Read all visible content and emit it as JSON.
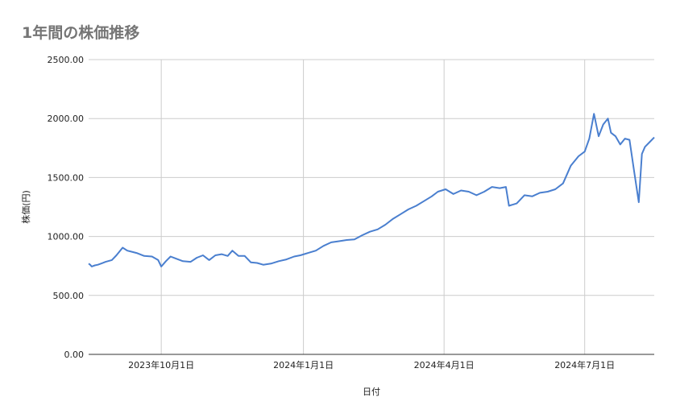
{
  "chart_data": {
    "type": "line",
    "title": "1年間の株価推移",
    "xlabel": "日付",
    "ylabel": "株価(円)",
    "ylim": [
      0,
      2500
    ],
    "xlim": [
      "2023-08-15",
      "2024-08-15"
    ],
    "y_ticks": [
      "0.00",
      "500.00",
      "1000.00",
      "1500.00",
      "2000.00",
      "2500.00"
    ],
    "x_ticks": [
      {
        "date": "2023-10-01",
        "label": "2023年10月1日"
      },
      {
        "date": "2024-01-01",
        "label": "2024年1月1日"
      },
      {
        "date": "2024-04-01",
        "label": "2024年4月1日"
      },
      {
        "date": "2024-07-01",
        "label": "2024年7月1日"
      }
    ],
    "grid": true,
    "legend": "none",
    "colors": {
      "line": "#4a7fcf",
      "grid": "#cccccc",
      "axis": "#333333"
    },
    "series": [
      {
        "x": [
          "2023-08-15",
          "2023-08-16",
          "2023-08-17",
          "2023-08-19",
          "2023-08-21",
          "2023-08-23",
          "2023-08-26",
          "2023-08-30",
          "2023-09-02",
          "2023-09-06",
          "2023-09-09",
          "2023-09-12",
          "2023-09-15",
          "2023-09-17",
          "2023-09-20",
          "2023-09-25",
          "2023-09-29",
          "2023-10-01",
          "2023-10-02",
          "2023-10-04",
          "2023-10-07",
          "2023-10-10",
          "2023-10-15",
          "2023-10-20",
          "2023-10-24",
          "2023-10-28",
          "2023-11-01",
          "2023-11-05",
          "2023-11-09",
          "2023-11-13",
          "2023-11-16",
          "2023-11-20",
          "2023-11-24",
          "2023-11-28",
          "2023-12-02",
          "2023-12-06",
          "2023-12-11",
          "2023-12-16",
          "2023-12-21",
          "2023-12-26",
          "2023-12-30",
          "2024-01-04",
          "2024-01-09",
          "2024-01-14",
          "2024-01-19",
          "2024-01-24",
          "2024-01-29",
          "2024-02-03",
          "2024-02-08",
          "2024-02-13",
          "2024-02-18",
          "2024-02-23",
          "2024-02-28",
          "2024-03-04",
          "2024-03-09",
          "2024-03-14",
          "2024-03-19",
          "2024-03-24",
          "2024-03-28",
          "2024-04-02",
          "2024-04-07",
          "2024-04-12",
          "2024-04-17",
          "2024-04-22",
          "2024-04-27",
          "2024-05-02",
          "2024-05-07",
          "2024-05-11",
          "2024-05-13",
          "2024-05-18",
          "2024-05-23",
          "2024-05-28",
          "2024-06-02",
          "2024-06-07",
          "2024-06-12",
          "2024-06-17",
          "2024-06-22",
          "2024-06-27",
          "2024-07-01",
          "2024-07-04",
          "2024-07-07",
          "2024-07-10",
          "2024-07-13",
          "2024-07-16",
          "2024-07-18",
          "2024-07-21",
          "2024-07-24",
          "2024-07-27",
          "2024-07-30",
          "2024-08-02",
          "2024-08-05",
          "2024-08-07",
          "2024-08-09",
          "2024-08-12",
          "2024-08-15"
        ],
        "values": [
          770,
          760,
          745,
          755,
          760,
          770,
          785,
          800,
          840,
          905,
          880,
          870,
          860,
          850,
          835,
          830,
          800,
          745,
          760,
          790,
          830,
          815,
          790,
          785,
          820,
          840,
          800,
          840,
          850,
          835,
          880,
          835,
          835,
          780,
          775,
          760,
          770,
          790,
          805,
          830,
          840,
          860,
          880,
          920,
          950,
          960,
          970,
          975,
          1010,
          1040,
          1060,
          1100,
          1150,
          1190,
          1230,
          1260,
          1300,
          1340,
          1380,
          1400,
          1360,
          1390,
          1380,
          1350,
          1380,
          1420,
          1410,
          1420,
          1260,
          1280,
          1350,
          1340,
          1370,
          1380,
          1400,
          1450,
          1600,
          1680,
          1720,
          1830,
          2040,
          1850,
          1950,
          2000,
          1880,
          1850,
          1780,
          1830,
          1820,
          1550,
          1290,
          1700,
          1760,
          1800,
          1840
        ]
      }
    ]
  }
}
